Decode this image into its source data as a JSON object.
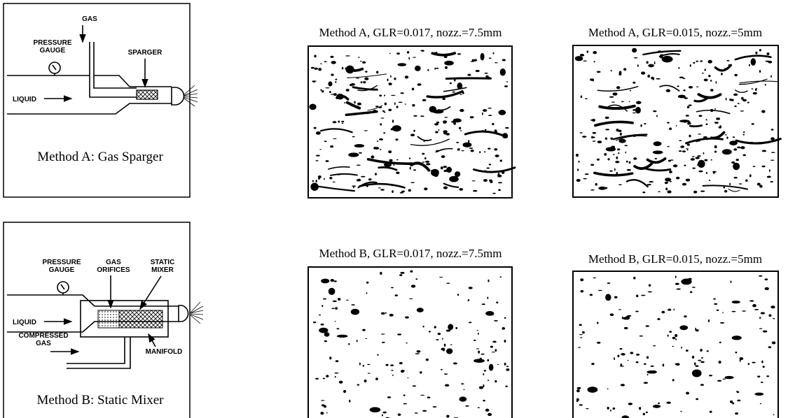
{
  "diagrams": [
    {
      "gas": "GAS",
      "gauge": [
        "PRESSURE",
        "GAUGE"
      ],
      "sparger": "SPARGER",
      "liquid": "LIQUID",
      "caption": "Method A: Gas Sparger"
    },
    {
      "gauge": [
        "PRESSURE",
        "GAUGE"
      ],
      "orifices": [
        "GAS",
        "ORIFICES"
      ],
      "mixer": [
        "STATIC",
        "MIXER"
      ],
      "liquid": "LIQUID",
      "compressed": [
        "COMPRESSED",
        "GAS"
      ],
      "manifold": "MANIFOLD",
      "caption": "Method B: Static Mixer"
    }
  ],
  "images": [
    {
      "title": "Method A, GLR=0.017, nozz.=7.5mm"
    },
    {
      "title": "Method A, GLR=0.015, nozz.=5mm"
    },
    {
      "title": "Method B, GLR=0.017, nozz.=7.5mm"
    },
    {
      "title": "Method B, GLR=0.015, nozz.=5mm"
    }
  ]
}
